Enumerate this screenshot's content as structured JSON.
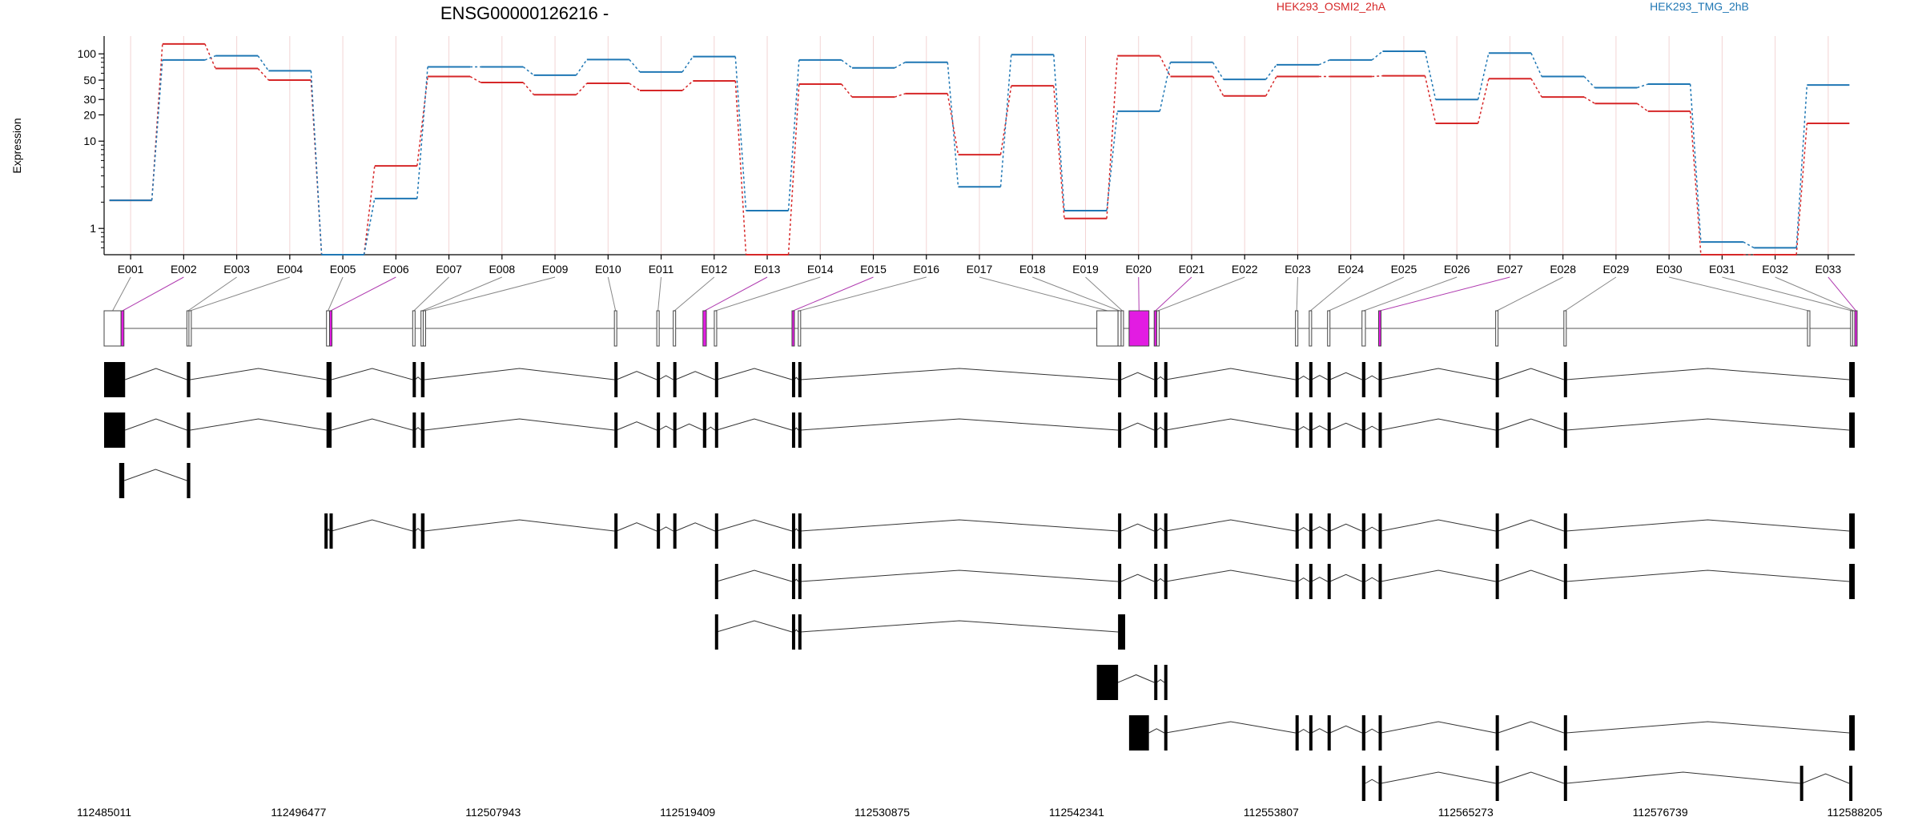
{
  "title": "ENSG00000126216 -",
  "ylabel": "Expression",
  "legend": [
    {
      "name": "HEK293_OSMI2_2hA",
      "color": "#d62728"
    },
    {
      "name": "HEK293_TMG_2hB",
      "color": "#1f77b4"
    }
  ],
  "chart_data": {
    "type": "line",
    "title": "ENSG00000126216 -",
    "ylabel": "Expression",
    "yscale": "log",
    "ylim": [
      0.5,
      160
    ],
    "yticks": [
      "1",
      "10",
      "20",
      "30",
      "50",
      "100"
    ],
    "categories": [
      "E001",
      "E002",
      "E003",
      "E004",
      "E005",
      "E006",
      "E007",
      "E008",
      "E009",
      "E010",
      "E011",
      "E012",
      "E013",
      "E014",
      "E015",
      "E016",
      "E017",
      "E018",
      "E019",
      "E020",
      "E021",
      "E022",
      "E023",
      "E024",
      "E025",
      "E026",
      "E027",
      "E028",
      "E029",
      "E030",
      "E031",
      "E032",
      "E033"
    ],
    "series": [
      {
        "name": "HEK293_OSMI2_2hA",
        "color": "#d62728",
        "values": [
          2.1,
          130,
          68,
          50,
          0.5,
          5.2,
          55,
          47,
          34,
          46,
          38,
          49,
          0.5,
          45,
          32,
          35,
          7,
          43,
          1.3,
          95,
          55,
          33,
          55,
          55,
          56,
          16,
          52,
          32,
          27,
          22,
          0.5,
          0.5,
          16
        ]
      },
      {
        "name": "HEK293_TMG_2hB",
        "color": "#1f77b4",
        "values": [
          2.1,
          85,
          95,
          64,
          0.5,
          2.2,
          71,
          71,
          57,
          86,
          62,
          93,
          1.6,
          85,
          69,
          80,
          3,
          98,
          1.6,
          22,
          80,
          51,
          75,
          85,
          107,
          30,
          102,
          55,
          41,
          45,
          0.7,
          0.6,
          44
        ]
      }
    ],
    "genomic_axis": {
      "start": 112485011,
      "end": 112588205,
      "ticks": [
        "112485011",
        "112496477",
        "112507943",
        "112519409",
        "112530875",
        "112542341",
        "112553807",
        "112565273",
        "112576739",
        "112588205"
      ]
    },
    "exons": [
      {
        "id": "E001",
        "start": 112485011,
        "end": 112486011
      },
      {
        "id": "E002",
        "start": 112486011,
        "end": 112486180
      },
      {
        "id": "E003",
        "start": 112489890,
        "end": 112490010
      },
      {
        "id": "E004",
        "start": 112490010,
        "end": 112490090
      },
      {
        "id": "E005",
        "start": 112498120,
        "end": 112498300
      },
      {
        "id": "E006",
        "start": 112498300,
        "end": 112498420
      },
      {
        "id": "E007",
        "start": 112503200,
        "end": 112503340
      },
      {
        "id": "E008",
        "start": 112503690,
        "end": 112503820
      },
      {
        "id": "E009",
        "start": 112503820,
        "end": 112503900
      },
      {
        "id": "E010",
        "start": 112515090,
        "end": 112515220
      },
      {
        "id": "E011",
        "start": 112517590,
        "end": 112517710
      },
      {
        "id": "E012",
        "start": 112518560,
        "end": 112518690
      },
      {
        "id": "E013",
        "start": 112520310,
        "end": 112520510
      },
      {
        "id": "E014",
        "start": 112520980,
        "end": 112521120
      },
      {
        "id": "E015",
        "start": 112525560,
        "end": 112525700
      },
      {
        "id": "E016",
        "start": 112525930,
        "end": 112526070
      },
      {
        "id": "E017",
        "start": 112543530,
        "end": 112544780
      },
      {
        "id": "E018",
        "start": 112544780,
        "end": 112544960
      },
      {
        "id": "E019",
        "start": 112544960,
        "end": 112545090
      },
      {
        "id": "E020",
        "start": 112545430,
        "end": 112546600
      },
      {
        "id": "E021",
        "start": 112546910,
        "end": 112547060
      },
      {
        "id": "E022",
        "start": 112547060,
        "end": 112547140
      },
      {
        "id": "E023",
        "start": 112555240,
        "end": 112555380
      },
      {
        "id": "E024",
        "start": 112556050,
        "end": 112556190
      },
      {
        "id": "E025",
        "start": 112557130,
        "end": 112557270
      },
      {
        "id": "E026",
        "start": 112559160,
        "end": 112559360
      },
      {
        "id": "E027",
        "start": 112560140,
        "end": 112560280
      },
      {
        "id": "E028",
        "start": 112567040,
        "end": 112567180
      },
      {
        "id": "E029",
        "start": 112571060,
        "end": 112571200
      },
      {
        "id": "E030",
        "start": 112585420,
        "end": 112585540
      },
      {
        "id": "E031",
        "start": 112587960,
        "end": 112588080
      },
      {
        "id": "E032",
        "start": 112588080,
        "end": 112588205
      },
      {
        "id": "E033",
        "start": 112588205,
        "end": 112588205
      }
    ],
    "highlighted_exons": [
      "E002",
      "E006",
      "E013",
      "E015",
      "E020",
      "E021",
      "E027",
      "E033"
    ],
    "transcripts": [
      {
        "exons": [
          [
            112485011,
            112486250
          ],
          [
            112489890,
            112490090
          ],
          [
            112498120,
            112498420
          ],
          [
            112503200,
            112503340
          ],
          [
            112503690,
            112503900
          ],
          [
            112515090,
            112515220
          ],
          [
            112517590,
            112517710
          ],
          [
            112518560,
            112518690
          ],
          [
            112521020,
            112521120
          ],
          [
            112525560,
            112525700
          ],
          [
            112525930,
            112526070
          ],
          [
            112544780,
            112544960
          ],
          [
            112546910,
            112547060
          ],
          [
            112547500,
            112547600
          ],
          [
            112555240,
            112555380
          ],
          [
            112556050,
            112556190
          ],
          [
            112557130,
            112557270
          ],
          [
            112559160,
            112559360
          ],
          [
            112560140,
            112560280
          ],
          [
            112567040,
            112567180
          ],
          [
            112571060,
            112571200
          ],
          [
            112587880,
            112588205
          ]
        ]
      },
      {
        "exons": [
          [
            112485011,
            112486250
          ],
          [
            112489890,
            112490090
          ],
          [
            112498120,
            112498420
          ],
          [
            112503200,
            112503340
          ],
          [
            112503690,
            112503900
          ],
          [
            112515090,
            112515220
          ],
          [
            112517590,
            112517710
          ],
          [
            112518560,
            112518690
          ],
          [
            112520310,
            112520510
          ],
          [
            112521020,
            112521120
          ],
          [
            112525560,
            112525700
          ],
          [
            112525930,
            112526070
          ],
          [
            112544780,
            112544960
          ],
          [
            112546910,
            112547060
          ],
          [
            112547500,
            112547600
          ],
          [
            112555240,
            112555380
          ],
          [
            112556050,
            112556190
          ],
          [
            112557130,
            112557270
          ],
          [
            112559160,
            112559360
          ],
          [
            112560140,
            112560280
          ],
          [
            112567040,
            112567180
          ],
          [
            112571060,
            112571200
          ],
          [
            112587880,
            112588205
          ]
        ]
      },
      {
        "exons": [
          [
            112485900,
            112486200
          ],
          [
            112489890,
            112490090
          ]
        ]
      },
      {
        "exons": [
          [
            112498000,
            112498170
          ],
          [
            112498300,
            112498420
          ],
          [
            112503200,
            112503340
          ],
          [
            112503690,
            112503900
          ],
          [
            112515090,
            112515220
          ],
          [
            112517590,
            112517710
          ],
          [
            112518560,
            112518690
          ],
          [
            112521020,
            112521120
          ],
          [
            112525560,
            112525700
          ],
          [
            112525930,
            112526070
          ],
          [
            112544780,
            112544960
          ],
          [
            112546910,
            112547060
          ],
          [
            112547500,
            112547600
          ],
          [
            112555240,
            112555380
          ],
          [
            112556050,
            112556190
          ],
          [
            112557130,
            112557270
          ],
          [
            112559160,
            112559360
          ],
          [
            112560140,
            112560280
          ],
          [
            112567040,
            112567180
          ],
          [
            112571060,
            112571200
          ],
          [
            112587880,
            112588205
          ]
        ]
      },
      {
        "exons": [
          [
            112521020,
            112521120
          ],
          [
            112525560,
            112525700
          ],
          [
            112525930,
            112526070
          ],
          [
            112544780,
            112544960
          ],
          [
            112546910,
            112547060
          ],
          [
            112547500,
            112547600
          ],
          [
            112555240,
            112555380
          ],
          [
            112556050,
            112556190
          ],
          [
            112557130,
            112557270
          ],
          [
            112559160,
            112559360
          ],
          [
            112560140,
            112560280
          ],
          [
            112567040,
            112567180
          ],
          [
            112571060,
            112571200
          ],
          [
            112587880,
            112588205
          ]
        ]
      },
      {
        "exons": [
          [
            112521020,
            112521120
          ],
          [
            112525560,
            112525700
          ],
          [
            112525930,
            112526070
          ],
          [
            112544780,
            112545200
          ]
        ]
      },
      {
        "exons": [
          [
            112543530,
            112544780
          ],
          [
            112546910,
            112547060
          ],
          [
            112547500,
            112547600
          ]
        ]
      },
      {
        "exons": [
          [
            112545430,
            112546600
          ],
          [
            112547500,
            112547600
          ],
          [
            112555240,
            112555380
          ],
          [
            112556050,
            112556190
          ],
          [
            112557130,
            112557270
          ],
          [
            112559160,
            112559360
          ],
          [
            112560140,
            112560280
          ],
          [
            112567040,
            112567180
          ],
          [
            112571060,
            112571200
          ],
          [
            112587880,
            112588205
          ]
        ]
      },
      {
        "exons": [
          [
            112559160,
            112559360
          ],
          [
            112560140,
            112560280
          ],
          [
            112567040,
            112567180
          ],
          [
            112571060,
            112571200
          ],
          [
            112584980,
            112585100
          ],
          [
            112587880,
            112588040
          ]
        ]
      }
    ]
  }
}
